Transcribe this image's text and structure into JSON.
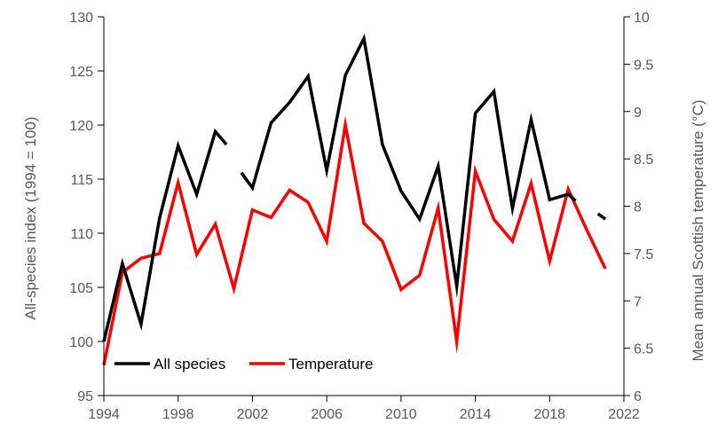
{
  "chart_data": {
    "type": "line",
    "y_left": {
      "label": "All-species index (1994 = 100)",
      "lim": [
        95,
        130
      ],
      "ticks": [
        95,
        100,
        105,
        110,
        115,
        120,
        125,
        130
      ]
    },
    "y_right": {
      "label": "Mean annual Scottish temperature (°C)",
      "lim": [
        6,
        10
      ],
      "ticks": [
        "6",
        "6.5",
        "7",
        "7.5",
        "8",
        "8.5",
        "9",
        "9.5",
        "10"
      ]
    },
    "x": {
      "lim": [
        1994,
        2022
      ],
      "ticks": [
        1994,
        1998,
        2002,
        2006,
        2010,
        2014,
        2018,
        2022
      ]
    },
    "grid": false,
    "legend": {
      "position": "bottom-left",
      "entries": [
        "All species",
        "Temperature"
      ]
    },
    "series": [
      {
        "name": "All species",
        "axis": "left",
        "color": "#000000",
        "points": [
          [
            1994,
            100
          ],
          [
            1995,
            107.2
          ],
          [
            1996,
            101.6
          ],
          [
            1997,
            111.4
          ],
          [
            1998,
            118.1
          ],
          [
            1999,
            113.6
          ],
          [
            2000,
            119.4
          ],
          [
            2000.6,
            118.2
          ],
          null,
          [
            2001.4,
            115.6
          ],
          [
            2002,
            114.2
          ],
          [
            2003,
            120.2
          ],
          [
            2004,
            122.1
          ],
          [
            2005,
            124.5
          ],
          [
            2006,
            115.8
          ],
          [
            2007,
            124.6
          ],
          [
            2008,
            128
          ],
          [
            2009,
            118.2
          ],
          [
            2010,
            113.9
          ],
          [
            2011,
            111.3
          ],
          [
            2012,
            116.2
          ],
          [
            2013,
            105.1
          ],
          [
            2014,
            121.1
          ],
          [
            2015,
            123.1
          ],
          [
            2016,
            112.3
          ],
          [
            2017,
            120.5
          ],
          [
            2018,
            113.1
          ],
          [
            2019,
            113.6
          ],
          [
            2019.4,
            113
          ],
          null,
          [
            2020.6,
            111.8
          ],
          [
            2021,
            111.3
          ]
        ]
      },
      {
        "name": "Temperature",
        "axis": "right",
        "color": "#ff0000",
        "points": [
          [
            1994,
            6.32
          ],
          [
            1995,
            7.3
          ],
          [
            1996,
            7.45
          ],
          [
            1997,
            7.5
          ],
          [
            1998,
            8.25
          ],
          [
            1999,
            7.49
          ],
          [
            2000,
            7.81
          ],
          [
            2001,
            7.13
          ],
          [
            2002,
            7.96
          ],
          [
            2003,
            7.88
          ],
          [
            2004,
            8.17
          ],
          [
            2005,
            8.04
          ],
          [
            2006,
            7.63
          ],
          [
            2007,
            8.86
          ],
          [
            2008,
            7.82
          ],
          [
            2009,
            7.63
          ],
          [
            2010,
            7.12
          ],
          [
            2011,
            7.27
          ],
          [
            2012,
            7.98
          ],
          [
            2013,
            6.57
          ],
          [
            2014,
            8.37
          ],
          [
            2015,
            7.86
          ],
          [
            2016,
            7.63
          ],
          [
            2017,
            8.24
          ],
          [
            2018,
            7.42
          ],
          [
            2019,
            8.18
          ],
          [
            2020,
            7.75
          ],
          [
            2021,
            7.34
          ]
        ]
      }
    ]
  }
}
